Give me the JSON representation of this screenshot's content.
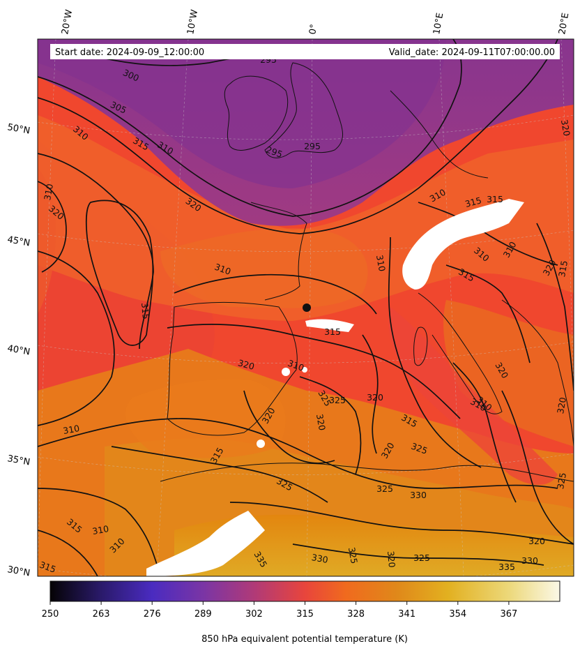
{
  "header": {
    "start_date": "Start date: 2024-09-09_12:00:00",
    "valid_date": "Valid_date: 2024-09-11T07:00:00.00"
  },
  "axes": {
    "longitude_labels": [
      "20°W",
      "10°W",
      "0°",
      "10°E",
      "20°E"
    ],
    "latitude_labels": [
      "50°N",
      "45°N",
      "40°N",
      "35°N",
      "30°N"
    ]
  },
  "colorbar": {
    "label": "850 hPa equivalent potential temperature (K)",
    "ticks": [
      "250",
      "263",
      "276",
      "289",
      "302",
      "315",
      "328",
      "341",
      "354",
      "367"
    ],
    "colormap": "CMRmap-like",
    "colors": [
      "#050305",
      "#2a1a6a",
      "#4a2bc0",
      "#7a35a5",
      "#b03a78",
      "#e8453c",
      "#f06a1e",
      "#e0881a",
      "#e2b020",
      "#ecd87a",
      "#fbf8e6"
    ]
  },
  "contour_labels": [
    "295",
    "295",
    "295",
    "300",
    "305",
    "310",
    "315",
    "320",
    "310",
    "310",
    "320",
    "310",
    "315",
    "310",
    "315",
    "315",
    "310",
    "310",
    "315",
    "310",
    "320",
    "315",
    "320",
    "325",
    "320",
    "320",
    "320",
    "325",
    "310",
    "315",
    "310",
    "320",
    "325",
    "315",
    "310",
    "310",
    "325",
    "320",
    "325",
    "330",
    "330",
    "325",
    "320",
    "325",
    "335",
    "330",
    "335",
    "315",
    "310",
    "315",
    "320",
    "320",
    "315",
    "325",
    "310",
    "320"
  ]
}
